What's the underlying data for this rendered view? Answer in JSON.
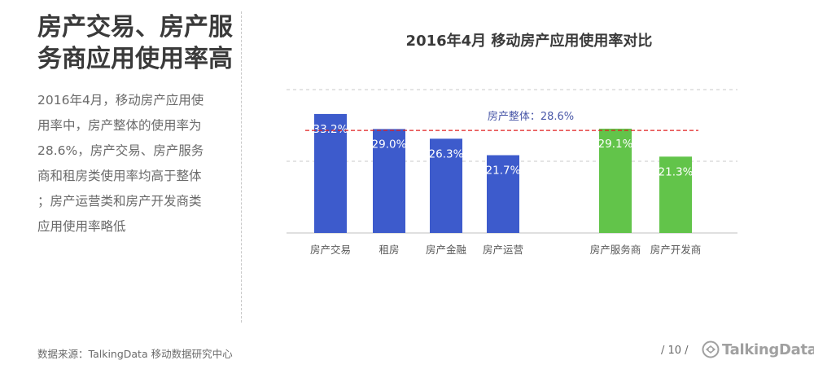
{
  "sidebar": {
    "title_lines": [
      "房产交易、房产服",
      "务商应用使用率高"
    ],
    "body_lines": [
      "2016年4月，移动房产应用使",
      "用率中，房产整体的使用率为",
      "28.6%，房产交易、房产服务",
      "商和租房类使用率均高于整体",
      "；房产运营类和房产开发商类",
      "应用使用率略低"
    ]
  },
  "footer": {
    "source": "数据来源：TalkingData 移动数据研究中心",
    "page": "/ 10 /",
    "logo_text": "TalkingData"
  },
  "chart_data": {
    "type": "bar",
    "title": "2016年4月 移动房产应用使用率对比",
    "categories": [
      "房产交易",
      "租房",
      "房产金融",
      "房产运营",
      "房产服务商",
      "房产开发商"
    ],
    "values": [
      33.2,
      29.0,
      26.3,
      21.7,
      29.1,
      21.3
    ],
    "value_labels": [
      "33.2%",
      "29.0%",
      "26.3%",
      "21.7%",
      "29.1%",
      "21.3%"
    ],
    "bar_colors": [
      "#3d5bcc",
      "#3d5bcc",
      "#3d5bcc",
      "#3d5bcc",
      "#62c44a",
      "#62c44a"
    ],
    "reference_line": {
      "value": 28.6,
      "label": "房产整体：28.6%",
      "color": "#e02020"
    },
    "ylim": [
      0,
      40
    ],
    "grid": true,
    "xlabel": "",
    "ylabel": ""
  }
}
